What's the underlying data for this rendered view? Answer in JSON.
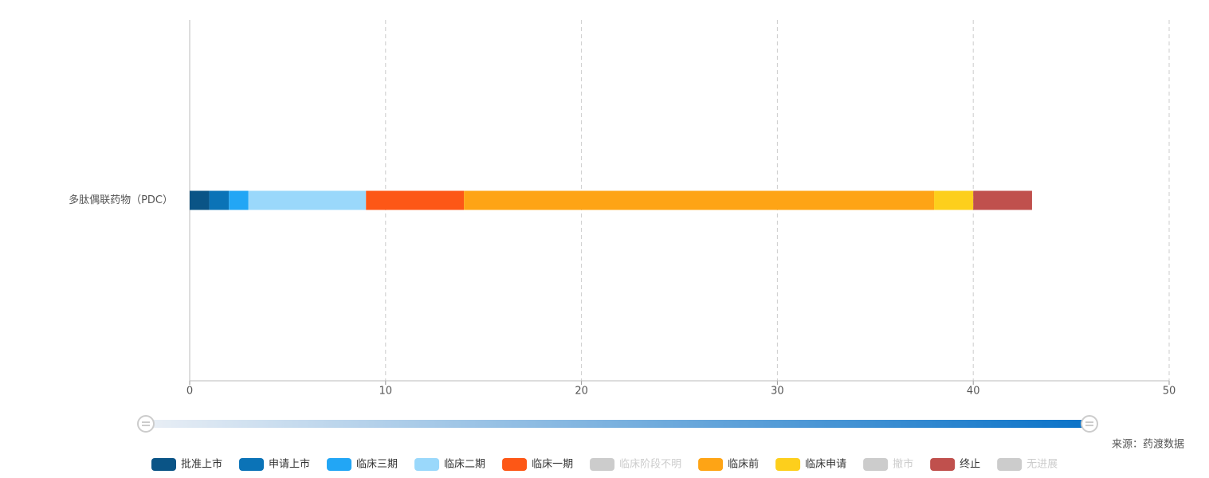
{
  "chart_data": {
    "type": "stacked-bar-horizontal",
    "categories": [
      "多肽偶联药物（PDC）"
    ],
    "series": [
      {
        "name": "批准上市",
        "color": "#0a5486",
        "values": [
          1
        ]
      },
      {
        "name": "申请上市",
        "color": "#0b73b7",
        "values": [
          1
        ]
      },
      {
        "name": "临床三期",
        "color": "#22a6f5",
        "values": [
          1
        ]
      },
      {
        "name": "临床二期",
        "color": "#9ad8fb",
        "values": [
          6
        ]
      },
      {
        "name": "临床一期",
        "color": "#fd5716",
        "values": [
          5
        ]
      },
      {
        "name": "临床阶段不明",
        "color": "#cccccc",
        "values": [
          null
        ],
        "hidden": true
      },
      {
        "name": "临床前",
        "color": "#fea415",
        "values": [
          24
        ]
      },
      {
        "name": "临床申请",
        "color": "#fdcf1c",
        "values": [
          2
        ]
      },
      {
        "name": "撤市",
        "color": "#cccccc",
        "values": [
          null
        ],
        "hidden": true
      },
      {
        "name": "终止",
        "color": "#c0504d",
        "values": [
          3
        ]
      },
      {
        "name": "无进展",
        "color": "#cccccc",
        "values": [
          null
        ],
        "hidden": true
      }
    ],
    "xlim": [
      0,
      50
    ],
    "xticks": [
      0,
      10,
      20,
      30,
      40,
      50
    ],
    "grid": true,
    "source": "来源：药渡数据"
  }
}
